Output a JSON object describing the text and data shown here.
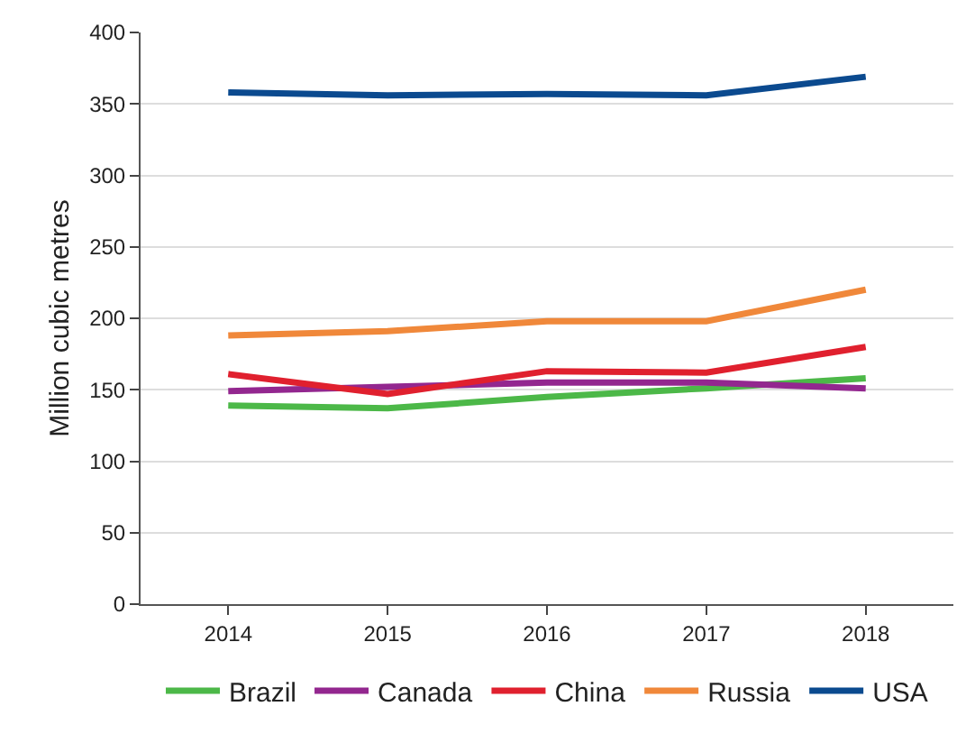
{
  "chart_data": {
    "type": "line",
    "ylabel": "Million cubic metres",
    "categories": [
      "2014",
      "2015",
      "2016",
      "2017",
      "2018"
    ],
    "series": [
      {
        "name": "Brazil",
        "color": "#4cb848",
        "values": [
          139,
          137,
          145,
          151,
          158
        ]
      },
      {
        "name": "Canada",
        "color": "#93278f",
        "values": [
          149,
          152,
          155,
          155,
          151
        ]
      },
      {
        "name": "China",
        "color": "#e0202e",
        "values": [
          161,
          147,
          163,
          162,
          180
        ]
      },
      {
        "name": "Russia",
        "color": "#f0883a",
        "values": [
          188,
          191,
          198,
          198,
          220
        ]
      },
      {
        "name": "USA",
        "color": "#0b4a8f",
        "values": [
          358,
          356,
          357,
          356,
          369
        ]
      }
    ],
    "ylim": [
      0,
      400
    ],
    "yticks": [
      0,
      50,
      100,
      150,
      200,
      250,
      300,
      350,
      400
    ],
    "grid": "y",
    "legend": "bottom",
    "marker": "none",
    "line_style": "solid"
  }
}
